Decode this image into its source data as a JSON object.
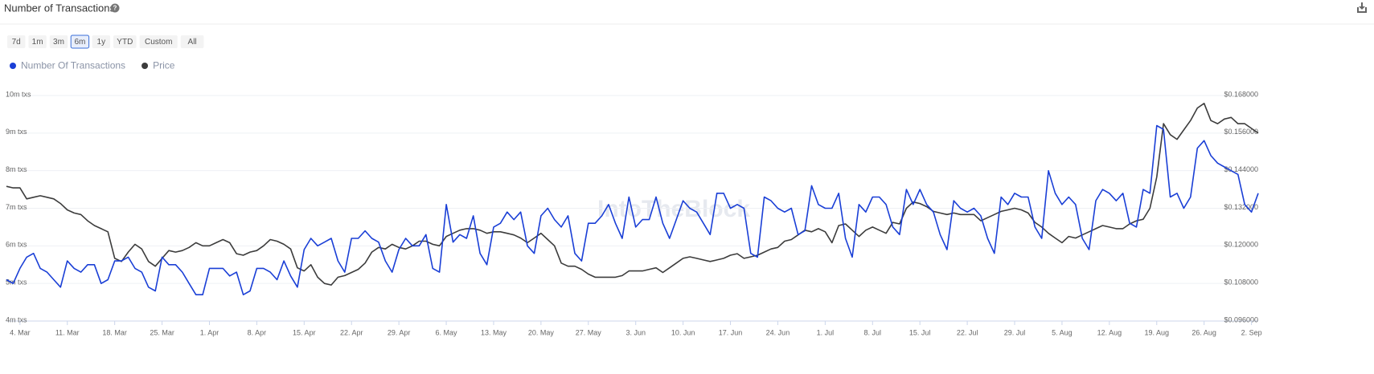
{
  "header": {
    "title": "Number of Transactions",
    "ranges": [
      "7d",
      "1m",
      "3m",
      "6m",
      "1y",
      "YTD",
      "Custom",
      "All"
    ],
    "active_range": 3,
    "watermark": "IntoTheBlock"
  },
  "chart_data": {
    "type": "line",
    "x": [
      "2. Mar",
      "3. Mar",
      "4. Mar",
      "5. Mar",
      "6. Mar",
      "7. Mar",
      "8. Mar",
      "9. Mar",
      "10. Mar",
      "11. Mar",
      "12. Mar",
      "13. Mar",
      "14. Mar",
      "15. Mar",
      "16. Mar",
      "17. Mar",
      "18. Mar",
      "19. Mar",
      "20. Mar",
      "21. Mar",
      "22. Mar",
      "23. Mar",
      "24. Mar",
      "25. Mar",
      "26. Mar",
      "27. Mar",
      "28. Mar",
      "29. Mar",
      "30. Mar",
      "31. Mar",
      "1. Apr",
      "2. Apr",
      "3. Apr",
      "4. Apr",
      "5. Apr",
      "6. Apr",
      "7. Apr",
      "8. Apr",
      "9. Apr",
      "10. Apr",
      "11. Apr",
      "12. Apr",
      "13. Apr",
      "14. Apr",
      "15. Apr",
      "16. Apr",
      "17. Apr",
      "18. Apr",
      "19. Apr",
      "20. Apr",
      "21. Apr",
      "22. Apr",
      "23. Apr",
      "24. Apr",
      "25. Apr",
      "26. Apr",
      "27. Apr",
      "28. Apr",
      "29. Apr",
      "30. Apr",
      "1. May",
      "2. May",
      "3. May",
      "4. May",
      "5. May",
      "6. May",
      "7. May",
      "8. May",
      "9. May",
      "10. May",
      "11. May",
      "12. May",
      "13. May",
      "14. May",
      "15. May",
      "16. May",
      "17. May",
      "18. May",
      "19. May",
      "20. May",
      "21. May",
      "22. May",
      "23. May",
      "24. May",
      "25. May",
      "26. May",
      "27. May",
      "28. May",
      "29. May",
      "30. May",
      "31. May",
      "1. Jun",
      "2. Jun",
      "3. Jun",
      "4. Jun",
      "5. Jun",
      "6. Jun",
      "7. Jun",
      "8. Jun",
      "9. Jun",
      "10. Jun",
      "11. Jun",
      "12. Jun",
      "13. Jun",
      "14. Jun",
      "15. Jun",
      "16. Jun",
      "17. Jun",
      "18. Jun",
      "19. Jun",
      "20. Jun",
      "21. Jun",
      "22. Jun",
      "23. Jun",
      "24. Jun",
      "25. Jun",
      "26. Jun",
      "27. Jun",
      "28. Jun",
      "29. Jun",
      "30. Jun",
      "1. Jul",
      "2. Jul",
      "3. Jul",
      "4. Jul",
      "5. Jul",
      "6. Jul",
      "7. Jul",
      "8. Jul",
      "9. Jul",
      "10. Jul",
      "11. Jul",
      "12. Jul",
      "13. Jul",
      "14. Jul",
      "15. Jul",
      "16. Jul",
      "17. Jul",
      "18. Jul",
      "19. Jul",
      "20. Jul",
      "21. Jul",
      "22. Jul",
      "23. Jul",
      "24. Jul",
      "25. Jul",
      "26. Jul",
      "27. Jul",
      "28. Jul",
      "29. Jul",
      "30. Jul",
      "31. Jul",
      "1. Aug",
      "2. Aug",
      "3. Aug",
      "4. Aug",
      "5. Aug",
      "6. Aug",
      "7. Aug",
      "8. Aug",
      "9. Aug",
      "10. Aug",
      "11. Aug",
      "12. Aug",
      "13. Aug",
      "14. Aug",
      "15. Aug",
      "16. Aug",
      "17. Aug",
      "18. Aug",
      "19. Aug",
      "20. Aug",
      "21. Aug",
      "22. Aug",
      "23. Aug",
      "24. Aug",
      "25. Aug",
      "26. Aug",
      "27. Aug",
      "28. Aug",
      "29. Aug",
      "30. Aug",
      "31. Aug",
      "1. Sep",
      "2. Sep",
      "3. Sep"
    ],
    "xticks": [
      "4. Mar",
      "11. Mar",
      "18. Mar",
      "25. Mar",
      "1. Apr",
      "8. Apr",
      "15. Apr",
      "22. Apr",
      "29. Apr",
      "6. May",
      "13. May",
      "20. May",
      "27. May",
      "3. Jun",
      "10. Jun",
      "17. Jun",
      "24. Jun",
      "1. Jul",
      "8. Jul",
      "15. Jul",
      "22. Jul",
      "29. Jul",
      "5. Aug",
      "12. Aug",
      "19. Aug",
      "26. Aug",
      "2. Sep"
    ],
    "ylim": [
      4,
      10
    ],
    "yticks": [
      {
        "value": 4,
        "label": "4m txs"
      },
      {
        "value": 5,
        "label": "5m txs"
      },
      {
        "value": 6,
        "label": "6m txs"
      },
      {
        "value": 7,
        "label": "7m txs"
      },
      {
        "value": 8,
        "label": "8m txs"
      },
      {
        "value": 9,
        "label": "9m txs"
      },
      {
        "value": 10,
        "label": "10m txs"
      }
    ],
    "y2lim": [
      0.096,
      0.168
    ],
    "y2ticks": [
      {
        "value": 0.096,
        "label": "$0.096000"
      },
      {
        "value": 0.108,
        "label": "$0.108000"
      },
      {
        "value": 0.12,
        "label": "$0.120000"
      },
      {
        "value": 0.132,
        "label": "$0.132000"
      },
      {
        "value": 0.144,
        "label": "$0.144000"
      },
      {
        "value": 0.156,
        "label": "$0.156000"
      },
      {
        "value": 0.168,
        "label": "$0.168000"
      }
    ],
    "grid": true,
    "legend": "top-left",
    "series": [
      {
        "name": "Number Of Transactions",
        "color": "#1a3fd6",
        "values": [
          5.1,
          5.0,
          5.4,
          5.7,
          5.8,
          5.4,
          5.3,
          5.1,
          4.9,
          5.6,
          5.4,
          5.3,
          5.5,
          5.5,
          5.0,
          5.1,
          5.6,
          5.6,
          5.7,
          5.4,
          5.3,
          4.9,
          4.8,
          5.7,
          5.5,
          5.5,
          5.3,
          5.0,
          4.7,
          4.7,
          5.4,
          5.4,
          5.4,
          5.2,
          5.3,
          4.7,
          4.8,
          5.4,
          5.4,
          5.3,
          5.1,
          5.6,
          5.2,
          4.9,
          5.9,
          6.2,
          6.0,
          6.1,
          6.2,
          5.6,
          5.3,
          6.2,
          6.2,
          6.4,
          6.2,
          6.1,
          5.6,
          5.3,
          5.9,
          6.2,
          6.0,
          6.0,
          6.3,
          5.4,
          5.3,
          7.1,
          6.1,
          6.3,
          6.2,
          6.8,
          5.8,
          5.5,
          6.5,
          6.6,
          6.9,
          6.7,
          6.9,
          6.0,
          5.8,
          6.8,
          7.0,
          6.7,
          6.5,
          6.8,
          5.8,
          5.6,
          6.6,
          6.6,
          6.8,
          7.1,
          6.6,
          6.2,
          7.3,
          6.5,
          6.7,
          6.7,
          7.3,
          6.6,
          6.2,
          6.7,
          7.2,
          7.0,
          6.9,
          6.6,
          6.3,
          7.4,
          7.4,
          7.0,
          7.1,
          7.0,
          5.8,
          5.7,
          7.3,
          7.2,
          7.0,
          6.9,
          7.0,
          6.3,
          6.4,
          7.6,
          7.1,
          7.0,
          7.0,
          7.4,
          6.2,
          5.7,
          7.1,
          6.9,
          7.3,
          7.3,
          7.1,
          6.5,
          6.3,
          7.5,
          7.1,
          7.5,
          7.1,
          6.9,
          6.3,
          5.9,
          7.2,
          7.0,
          6.9,
          7.0,
          6.8,
          6.2,
          5.8,
          7.3,
          7.1,
          7.4,
          7.3,
          7.3,
          6.5,
          6.2,
          8.0,
          7.4,
          7.1,
          7.3,
          7.1,
          6.2,
          5.9,
          7.2,
          7.5,
          7.4,
          7.2,
          7.4,
          6.6,
          6.5,
          7.5,
          7.4,
          9.2,
          9.1,
          7.3,
          7.4,
          7.0,
          7.3,
          8.6,
          8.8,
          8.4,
          8.2,
          8.1,
          8.0,
          7.9,
          7.1,
          6.9,
          7.4
        ]
      },
      {
        "name": "Price",
        "color": "#3c3c3c",
        "axis": "y2",
        "values": [
          0.139,
          0.1385,
          0.1385,
          0.135,
          0.1355,
          0.136,
          0.1355,
          0.135,
          0.1335,
          0.1315,
          0.1305,
          0.13,
          0.128,
          0.1265,
          0.1255,
          0.1245,
          0.116,
          0.115,
          0.118,
          0.1205,
          0.119,
          0.115,
          0.1135,
          0.116,
          0.1185,
          0.118,
          0.1185,
          0.1195,
          0.121,
          0.12,
          0.12,
          0.121,
          0.122,
          0.121,
          0.1175,
          0.117,
          0.118,
          0.1185,
          0.12,
          0.122,
          0.1215,
          0.1205,
          0.119,
          0.113,
          0.112,
          0.114,
          0.11,
          0.108,
          0.1075,
          0.11,
          0.1105,
          0.1115,
          0.1125,
          0.1145,
          0.118,
          0.1195,
          0.119,
          0.1205,
          0.1195,
          0.119,
          0.12,
          0.1215,
          0.1215,
          0.1205,
          0.12,
          0.123,
          0.124,
          0.125,
          0.1255,
          0.1255,
          0.125,
          0.124,
          0.1245,
          0.1245,
          0.124,
          0.1235,
          0.1225,
          0.121,
          0.1225,
          0.124,
          0.122,
          0.12,
          0.1145,
          0.1135,
          0.1135,
          0.1125,
          0.111,
          0.11,
          0.11,
          0.11,
          0.11,
          0.1105,
          0.112,
          0.112,
          0.112,
          0.1125,
          0.113,
          0.1115,
          0.113,
          0.1145,
          0.116,
          0.1165,
          0.116,
          0.1155,
          0.115,
          0.1155,
          0.116,
          0.117,
          0.1175,
          0.116,
          0.1165,
          0.117,
          0.118,
          0.119,
          0.1195,
          0.1215,
          0.122,
          0.1235,
          0.125,
          0.1245,
          0.1255,
          0.1245,
          0.121,
          0.1265,
          0.127,
          0.125,
          0.123,
          0.125,
          0.126,
          0.125,
          0.124,
          0.1275,
          0.127,
          0.132,
          0.134,
          0.1335,
          0.1325,
          0.131,
          0.1305,
          0.13,
          0.1305,
          0.13,
          0.13,
          0.13,
          0.128,
          0.129,
          0.13,
          0.131,
          0.1315,
          0.132,
          0.1315,
          0.1305,
          0.1275,
          0.126,
          0.124,
          0.1225,
          0.121,
          0.123,
          0.1225,
          0.1235,
          0.1245,
          0.1255,
          0.1265,
          0.126,
          0.1255,
          0.1255,
          0.127,
          0.128,
          0.1285,
          0.132,
          0.142,
          0.159,
          0.1555,
          0.154,
          0.157,
          0.16,
          0.164,
          0.1655,
          0.16,
          0.159,
          0.1605,
          0.161,
          0.159,
          0.159,
          0.1575,
          0.156
        ]
      }
    ]
  }
}
